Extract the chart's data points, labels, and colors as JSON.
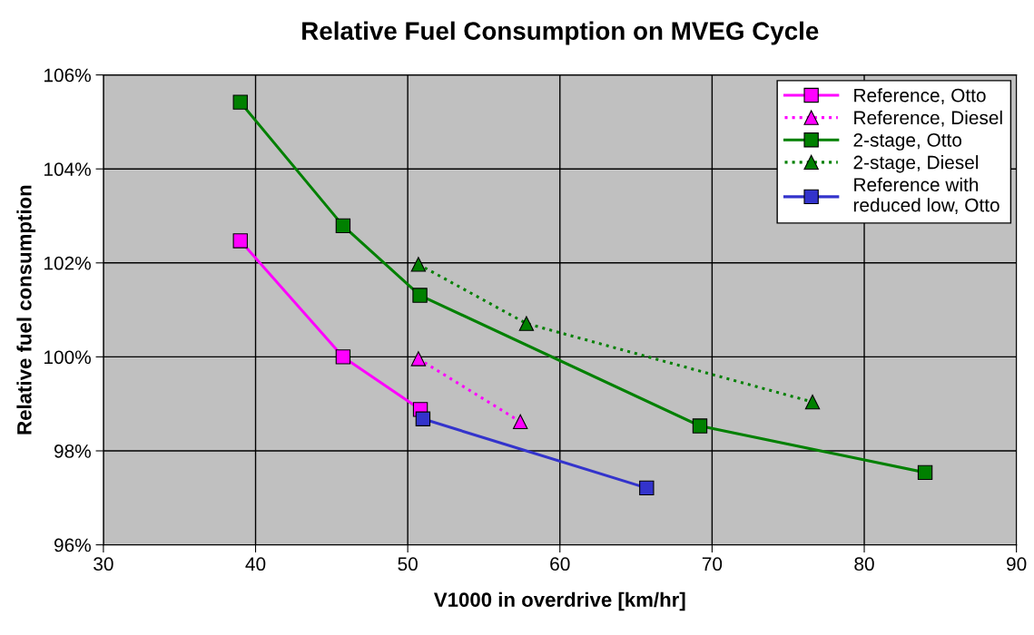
{
  "chart_data": {
    "type": "line",
    "title": "Relative Fuel Consumption on MVEG Cycle",
    "xlabel": "V1000 in overdrive [km/hr]",
    "ylabel": "Relative fuel consumption",
    "series": [
      {
        "name": "Reference, Otto",
        "color": "#ff00ff",
        "marker": "square",
        "line_style": "solid",
        "x": [
          39.0,
          45.75,
          50.83
        ],
        "values": [
          102.47,
          100.0,
          98.88
        ]
      },
      {
        "name": "Reference, Diesel",
        "color": "#ff00ff",
        "marker": "triangle",
        "line_style": "dotted",
        "x": [
          50.7,
          57.4
        ],
        "values": [
          99.96,
          98.62
        ]
      },
      {
        "name": "2-stage, Otto",
        "color": "#008000",
        "marker": "square",
        "line_style": "solid",
        "x": [
          39.0,
          45.75,
          50.8,
          69.2,
          84.0
        ],
        "values": [
          105.42,
          102.79,
          101.31,
          98.53,
          97.54
        ]
      },
      {
        "name": "2-stage, Diesel",
        "color": "#008000",
        "marker": "triangle",
        "line_style": "dotted",
        "x": [
          50.7,
          57.8,
          76.6
        ],
        "values": [
          101.97,
          100.71,
          99.04
        ]
      },
      {
        "name": "Reference with\nreduced low, Otto",
        "color": "#3333cc",
        "marker": "square",
        "line_style": "solid",
        "x": [
          51.0,
          65.7
        ],
        "values": [
          98.68,
          97.21
        ]
      }
    ],
    "xlim": [
      30,
      90
    ],
    "xticks": [
      30,
      40,
      50,
      60,
      70,
      80,
      90
    ],
    "ylim": [
      96,
      106
    ],
    "yticks": [
      {
        "value": 96,
        "label": "96%"
      },
      {
        "value": 98,
        "label": "98%"
      },
      {
        "value": 100,
        "label": "100%"
      },
      {
        "value": 102,
        "label": "102%"
      },
      {
        "value": 104,
        "label": "104%"
      },
      {
        "value": 106,
        "label": "106%"
      }
    ],
    "grid": true,
    "legend": "top right"
  }
}
